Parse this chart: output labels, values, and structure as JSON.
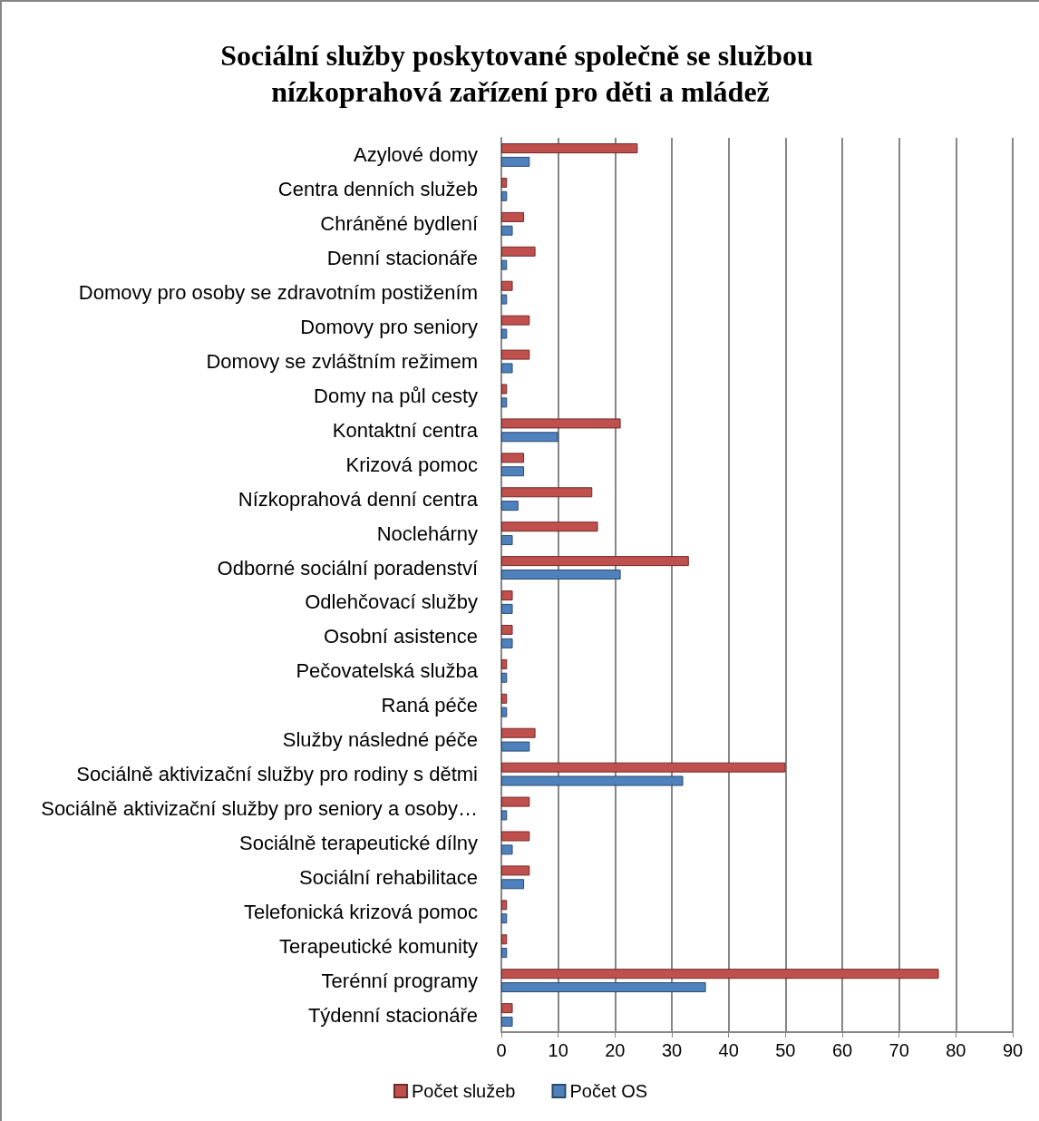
{
  "chart_data": {
    "type": "bar",
    "orientation": "horizontal",
    "title": "Sociální služby poskytované společně se službou nízkoprahová zařízení pro děti a mládež",
    "categories": [
      "Azylové domy",
      "Centra denních služeb",
      "Chráněné bydlení",
      "Denní stacionáře",
      "Domovy pro osoby se zdravotním postižením",
      "Domovy pro seniory",
      "Domovy se zvláštním režimem",
      "Domy na půl cesty",
      "Kontaktní centra",
      "Krizová pomoc",
      "Nízkoprahová denní centra",
      "Noclehárny",
      "Odborné sociální poradenství",
      "Odlehčovací služby",
      "Osobní asistence",
      "Pečovatelská služba",
      "Raná péče",
      "Služby následné péče",
      "Sociálně aktivizační služby pro rodiny s dětmi",
      "Sociálně aktivizační služby pro seniory a osoby…",
      "Sociálně terapeutické dílny",
      "Sociální rehabilitace",
      "Telefonická krizová pomoc",
      "Terapeutické komunity",
      "Terénní programy",
      "Týdenní stacionáře"
    ],
    "series": [
      {
        "name": "Počet služeb",
        "color": "#c0504d",
        "values": [
          24,
          1,
          4,
          6,
          2,
          5,
          5,
          1,
          21,
          4,
          16,
          17,
          33,
          2,
          2,
          1,
          1,
          6,
          50,
          5,
          5,
          5,
          1,
          1,
          77,
          2
        ]
      },
      {
        "name": "Počet OS",
        "color": "#4f81bd",
        "values": [
          5,
          1,
          2,
          1,
          1,
          1,
          2,
          1,
          10,
          4,
          3,
          2,
          21,
          2,
          2,
          1,
          1,
          5,
          32,
          1,
          2,
          4,
          1,
          1,
          36,
          2
        ]
      }
    ],
    "xlim": [
      0,
      90
    ],
    "xticks": [
      0,
      10,
      20,
      30,
      40,
      50,
      60,
      70,
      80,
      90
    ],
    "grid": "x",
    "legend": "bottom"
  }
}
